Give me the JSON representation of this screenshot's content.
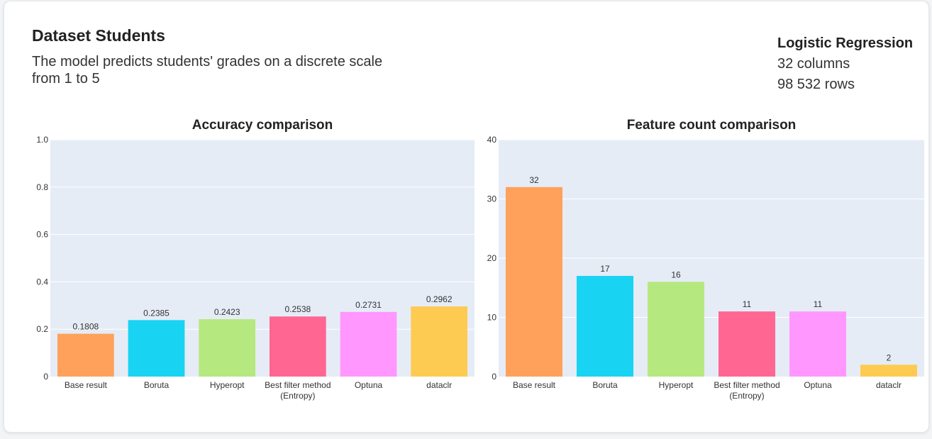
{
  "dataset": {
    "title": "Dataset Students",
    "description": "The model predicts students' grades on a discrete scale from 1 to 5"
  },
  "model_info": {
    "model": "Logistic Regression",
    "columns": "32 columns",
    "rows": "98 532 rows"
  },
  "colors": {
    "plot_bg": "#e5ecf6",
    "bars": [
      "#ffa15a",
      "#19d3f3",
      "#b6e880",
      "#ff6692",
      "#ff97ff",
      "#fecb52"
    ]
  },
  "chart_data": [
    {
      "type": "bar",
      "title": "Accuracy comparison",
      "categories": [
        "Base result",
        "Boruta",
        "Hyperopt",
        "Best filter method (Entropy)",
        "Optuna",
        "dataclr"
      ],
      "category_lines": [
        [
          "Base result"
        ],
        [
          "Boruta"
        ],
        [
          "Hyperopt"
        ],
        [
          "Best filter method",
          "(Entropy)"
        ],
        [
          "Optuna"
        ],
        [
          "dataclr"
        ]
      ],
      "values": [
        0.1808,
        0.2385,
        0.2423,
        0.2538,
        0.2731,
        0.2962
      ],
      "value_labels": [
        "0.1808",
        "0.2385",
        "0.2423",
        "0.2538",
        "0.2731",
        "0.2962"
      ],
      "ylim": [
        0,
        1
      ],
      "yticks": [
        0,
        0.2,
        0.4,
        0.6,
        0.8,
        1.0
      ],
      "ytick_labels": [
        "0",
        "0.2",
        "0.4",
        "0.6",
        "0.8",
        "1.0"
      ],
      "xlabel": "",
      "ylabel": "",
      "grid": true
    },
    {
      "type": "bar",
      "title": "Feature count comparison",
      "categories": [
        "Base result",
        "Boruta",
        "Hyperopt",
        "Best filter method (Entropy)",
        "Optuna",
        "dataclr"
      ],
      "category_lines": [
        [
          "Base result"
        ],
        [
          "Boruta"
        ],
        [
          "Hyperopt"
        ],
        [
          "Best filter method",
          "(Entropy)"
        ],
        [
          "Optuna"
        ],
        [
          "dataclr"
        ]
      ],
      "values": [
        32,
        17,
        16,
        11,
        11,
        2
      ],
      "value_labels": [
        "32",
        "17",
        "16",
        "11",
        "11",
        "2"
      ],
      "ylim": [
        0,
        40
      ],
      "yticks": [
        0,
        10,
        20,
        30,
        40
      ],
      "ytick_labels": [
        "0",
        "10",
        "20",
        "30",
        "40"
      ],
      "xlabel": "",
      "ylabel": "",
      "grid": true
    }
  ]
}
